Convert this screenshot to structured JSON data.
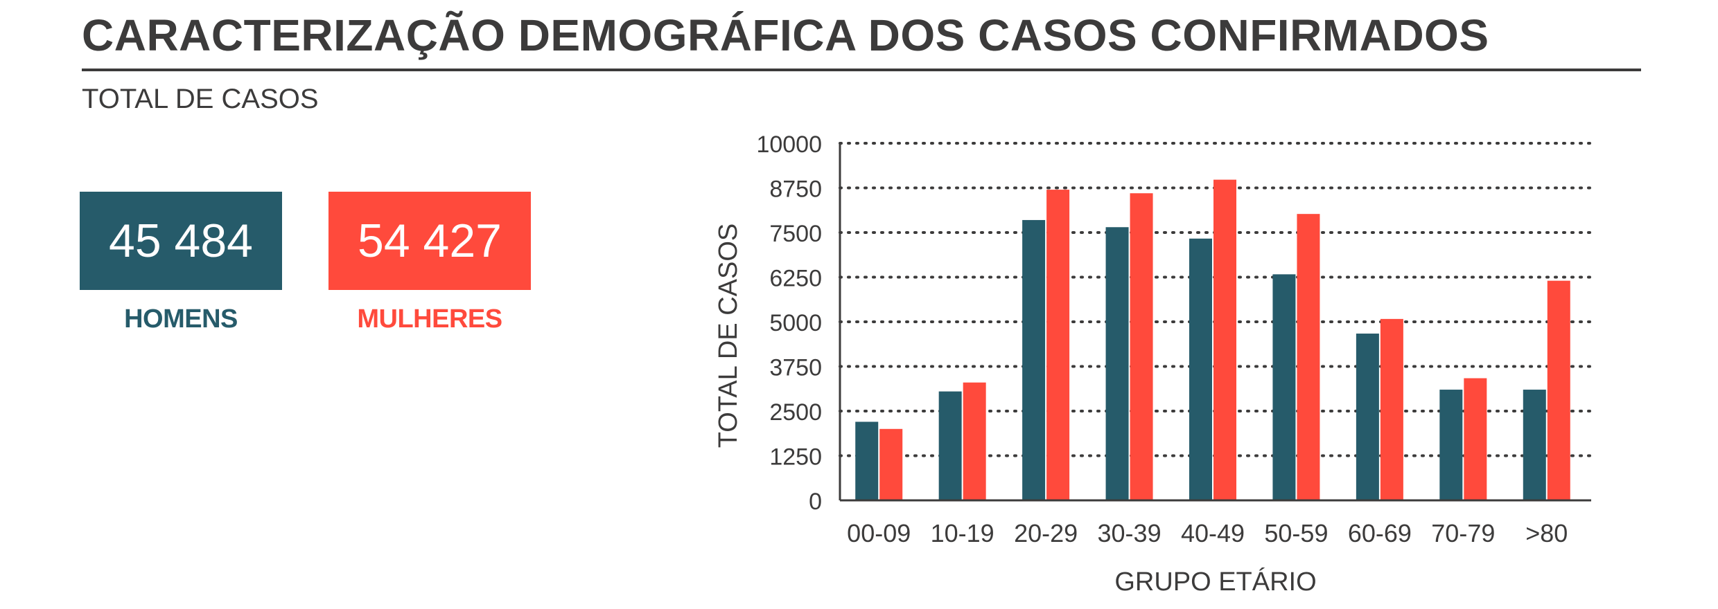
{
  "header": {
    "title": "CARACTERIZAÇÃO DEMOGRÁFICA DOS CASOS CONFIRMADOS",
    "subtitle": "TOTAL DE CASOS"
  },
  "kpis": {
    "men": {
      "value": "45 484",
      "label": "HOMENS",
      "color": "#265b6a"
    },
    "women": {
      "value": "54 427",
      "label": "MULHERES",
      "color": "#ff4a3c"
    }
  },
  "chart_data": {
    "type": "bar",
    "categories": [
      "00-09",
      "10-19",
      "20-29",
      "30-39",
      "40-49",
      "50-59",
      "60-69",
      "70-79",
      ">80"
    ],
    "series": [
      {
        "name": "HOMENS",
        "color": "#265b6a",
        "values": [
          2200,
          3050,
          7850,
          7650,
          7330,
          6330,
          4670,
          3100,
          3100
        ]
      },
      {
        "name": "MULHERES",
        "color": "#ff4a3c",
        "values": [
          2000,
          3300,
          8700,
          8600,
          8980,
          8020,
          5080,
          3420,
          6150
        ]
      }
    ],
    "xlabel": "GRUPO ETÁRIO",
    "ylabel": "TOTAL DE CASOS",
    "ylim": [
      0,
      10000
    ],
    "yticks": [
      "0",
      "1250",
      "2500",
      "3750",
      "5000",
      "6250",
      "7500",
      "8750",
      "10000"
    ],
    "grid": true
  }
}
